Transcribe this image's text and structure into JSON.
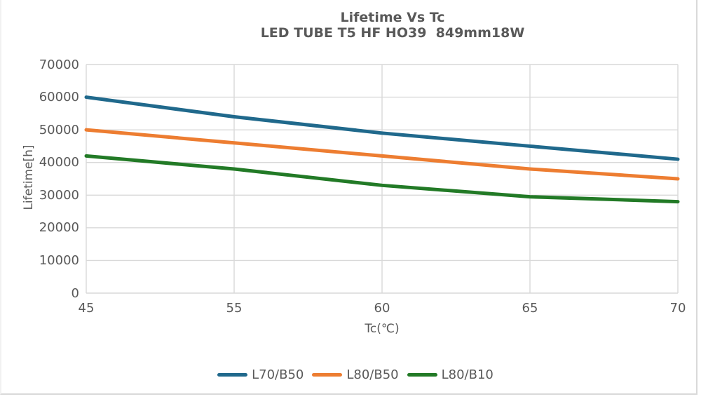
{
  "title": {
    "line1": "Lifetime Vs Tc",
    "line2": "LED TUBE T5 HF HO39  849mm18W"
  },
  "colors": {
    "text": "#595959",
    "grid": "#d9d9d9",
    "frame": "#d9d9d9",
    "background": "#ffffff"
  },
  "chart_data": {
    "type": "line",
    "title": "Lifetime Vs Tc",
    "subtitle": "LED TUBE T5 HF HO39  849mm18W",
    "xlabel": "Tc(℃)",
    "ylabel": "Lifetime[h]",
    "x_axis_type": "category",
    "categories": [
      "45",
      "55",
      "60",
      "65",
      "70"
    ],
    "ylim": [
      0,
      70000
    ],
    "yticks": [
      0,
      10000,
      20000,
      30000,
      40000,
      50000,
      60000,
      70000
    ],
    "grid": true,
    "legend_position": "bottom",
    "series": [
      {
        "name": "L70/B50",
        "color": "#20698C",
        "values": [
          60000,
          54000,
          49000,
          45000,
          41000
        ]
      },
      {
        "name": "L80/B50",
        "color": "#ED7D31",
        "values": [
          50000,
          46000,
          42000,
          38000,
          35000
        ]
      },
      {
        "name": "L80/B10",
        "color": "#227A26",
        "values": [
          42000,
          38000,
          33000,
          29500,
          28000
        ]
      }
    ]
  }
}
